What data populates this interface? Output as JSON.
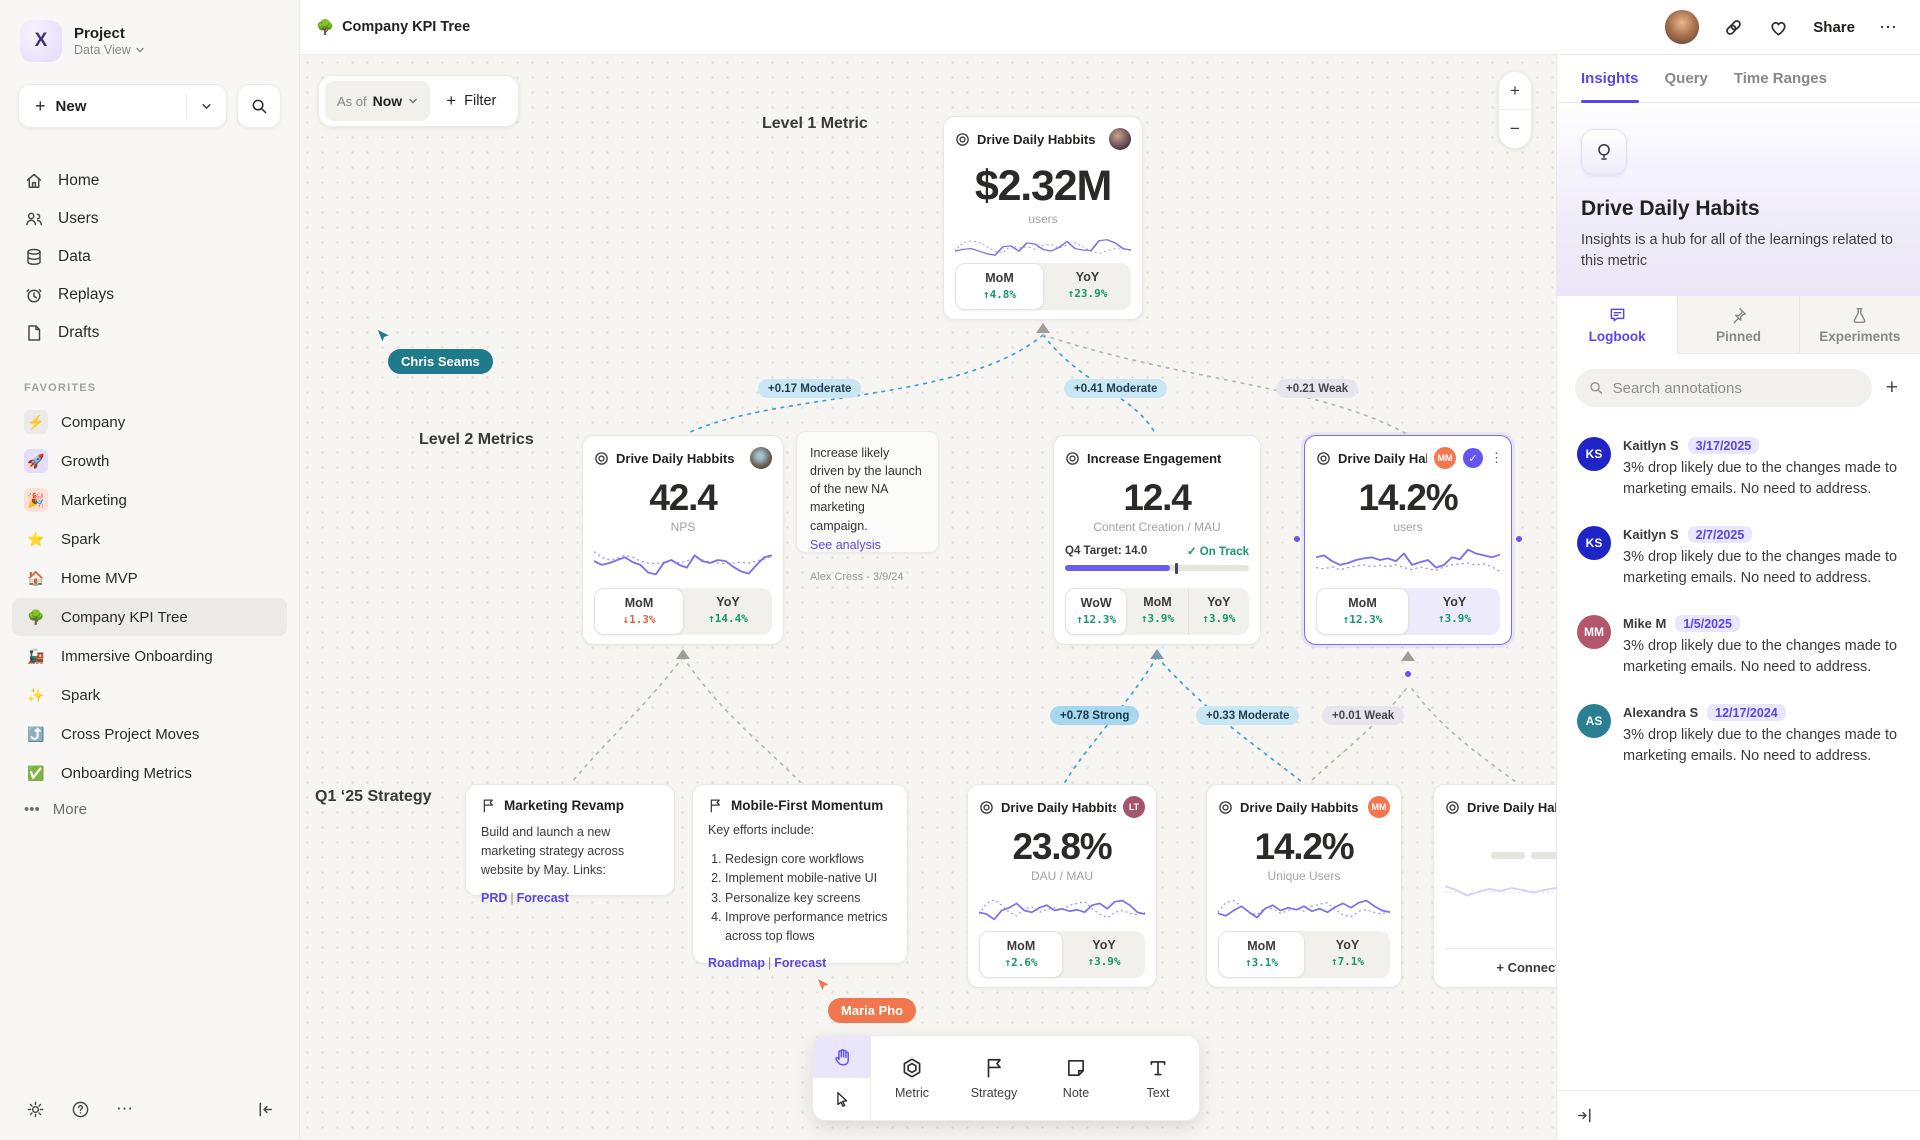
{
  "colors": {
    "accent": "#5a46e8",
    "spark": "#7b6ff0",
    "green": "#17976b",
    "red": "#e2604b",
    "edge_blue": "#3ba1d9",
    "edge_gray": "#b9b6b0",
    "pill_moderate_bg": "#c9e6f3",
    "pill_strong_bg": "#a6d7ee",
    "pill_weak_bg": "#e6e4ec",
    "selected_border": "#7b6cf6"
  },
  "sidebar": {
    "project_name": "Project",
    "project_view": "Data View",
    "new_label": "New",
    "nav": [
      {
        "icon": "home-icon",
        "label": "Home"
      },
      {
        "icon": "users-icon",
        "label": "Users"
      },
      {
        "icon": "data-icon",
        "label": "Data"
      },
      {
        "icon": "replays-icon",
        "label": "Replays"
      },
      {
        "icon": "drafts-icon",
        "label": "Drafts"
      }
    ],
    "favorites_label": "FAVORITES",
    "favorites": [
      {
        "emoji": "⚡",
        "label": "Company",
        "bg": "#ebeae7"
      },
      {
        "emoji": "🚀",
        "label": "Growth",
        "bg": "#e3ddfb"
      },
      {
        "emoji": "🎉",
        "label": "Marketing",
        "bg": "#fcdfd7"
      },
      {
        "emoji": "⭐",
        "label": "Spark",
        "bg": ""
      },
      {
        "emoji": "🏠",
        "label": "Home MVP",
        "bg": ""
      },
      {
        "emoji": "🌳",
        "label": "Company KPI Tree",
        "bg": ""
      },
      {
        "emoji": "🚂",
        "label": "Immersive Onboarding",
        "bg": ""
      },
      {
        "emoji": "✨",
        "label": "Spark",
        "bg": ""
      },
      {
        "emoji": "⤴️",
        "label": "Cross Project Moves",
        "bg": ""
      },
      {
        "emoji": "✅",
        "label": "Onboarding Metrics",
        "bg": ""
      }
    ],
    "more_label": "More"
  },
  "topbar": {
    "emoji": "🌳",
    "title": "Company KPI Tree",
    "share_label": "Share",
    "more_label": "⋯"
  },
  "canvas": {
    "asof_label": "As of",
    "asof_value": "Now",
    "filter_label": "Filter",
    "zoom_in": "+",
    "zoom_out": "−",
    "level1_label": "Level 1 Metric",
    "level2_label": "Level 2 Metrics",
    "strategy_label": "Q1 ‘25 Strategy",
    "cursors": [
      {
        "name": "Chris Seams",
        "color": "#1f7a8c"
      },
      {
        "name": "Maria Pho",
        "color": "#f0764e"
      }
    ],
    "edges": [
      {
        "label": "+0.17 Moderate"
      },
      {
        "label": "+0.41 Moderate"
      },
      {
        "label": "+0.21 Weak"
      },
      {
        "label": "+0.78 Strong"
      },
      {
        "label": "+0.33 Moderate"
      },
      {
        "label": "+0.01 Weak"
      }
    ]
  },
  "cards": {
    "level1": {
      "title": "Drive Daily Habbits",
      "value": "$2.32M",
      "unit": "users",
      "stats": [
        {
          "label": "MoM",
          "arrow": "↑",
          "value": "4.8%",
          "color": "#17976b"
        },
        {
          "label": "YoY",
          "arrow": "↑",
          "value": "23.9%",
          "color": "#17976b"
        }
      ],
      "spark": {
        "solid": [
          0.62,
          0.55,
          0.52,
          0.62,
          0.72,
          0.78,
          0.45,
          0.42,
          0.62,
          0.3,
          0.35,
          0.55,
          0.62,
          0.48,
          0.25,
          0.52,
          0.58,
          0.6,
          0.22,
          0.18,
          0.3,
          0.52,
          0.58
        ],
        "dotted": [
          0.6,
          0.3,
          0.22,
          0.28,
          0.45,
          0.62,
          0.68,
          0.4,
          0.5,
          0.45,
          0.55,
          0.4,
          0.35,
          0.5,
          0.38,
          0.3,
          0.45,
          0.62,
          0.72,
          0.6,
          0.52,
          0.55,
          0.6
        ]
      }
    },
    "l2a": {
      "title": "Drive Daily Habbits",
      "value": "42.4",
      "unit": "NPS",
      "stats": [
        {
          "label": "MoM",
          "arrow": "↓",
          "value": "1.3%",
          "color": "#e2604b"
        },
        {
          "label": "YoY",
          "arrow": "↑",
          "value": "14.4%",
          "color": "#17976b"
        }
      ],
      "spark": {
        "solid": [
          0.45,
          0.55,
          0.5,
          0.42,
          0.35,
          0.48,
          0.55,
          0.75,
          0.8,
          0.5,
          0.42,
          0.55,
          0.62,
          0.3,
          0.45,
          0.5,
          0.42,
          0.45,
          0.6,
          0.72,
          0.78,
          0.55,
          0.35,
          0.3
        ],
        "dotted": [
          0.2,
          0.35,
          0.42,
          0.38,
          0.3,
          0.35,
          0.45,
          0.5,
          0.52,
          0.48,
          0.42,
          0.5,
          0.45,
          0.35,
          0.42,
          0.48,
          0.5,
          0.52,
          0.5,
          0.48,
          0.5,
          0.45,
          0.4,
          0.32
        ]
      }
    },
    "note1": {
      "text": "Increase likely driven by the launch of the new NA marketing campaign.",
      "link": "See analysis",
      "author": "Alex Cress - 3/9/24"
    },
    "l2b": {
      "title": "Increase Engagement",
      "value": "12.4",
      "unit": "Content Creation / MAU",
      "target_label": "Q4 Target:",
      "target_value": "14.0",
      "status": "✓ On Track",
      "progress": 0.57,
      "tick": 0.6,
      "stats": [
        {
          "label": "WoW",
          "arrow": "↑",
          "value": "12.3%",
          "color": "#17976b"
        },
        {
          "label": "MoM",
          "arrow": "↑",
          "value": "3.9%",
          "color": "#17976b"
        },
        {
          "label": "YoY",
          "arrow": "↑",
          "value": "3.9%",
          "color": "#17976b"
        }
      ]
    },
    "l2c": {
      "title": "Drive Daily Habb..",
      "badge": "MM",
      "badge_color": "#f4764f",
      "check": "✓",
      "menu": "⋮",
      "value": "14.2%",
      "unit": "users",
      "stats": [
        {
          "label": "MoM",
          "arrow": "↑",
          "value": "12.3%",
          "color": "#17976b"
        },
        {
          "label": "YoY",
          "arrow": "↑",
          "value": "3.9%",
          "color": "#17976b"
        }
      ],
      "spark": {
        "solid": [
          0.35,
          0.3,
          0.45,
          0.55,
          0.5,
          0.42,
          0.38,
          0.35,
          0.42,
          0.38,
          0.45,
          0.25,
          0.55,
          0.48,
          0.42,
          0.62,
          0.55,
          0.35,
          0.4,
          0.15,
          0.25,
          0.3,
          0.35,
          0.28
        ],
        "dotted": [
          0.62,
          0.65,
          0.6,
          0.68,
          0.62,
          0.58,
          0.55,
          0.6,
          0.56,
          0.6,
          0.55,
          0.62,
          0.68,
          0.6,
          0.65,
          0.7,
          0.6,
          0.55,
          0.52,
          0.5,
          0.55,
          0.52,
          0.6,
          0.72
        ]
      }
    },
    "s1": {
      "title": "Marketing Revamp",
      "body": "Build and launch a new marketing strategy across website by May. Links:",
      "link1": "PRD",
      "link2": "Forecast"
    },
    "s2": {
      "title": "Mobile-First Momentum",
      "intro": "Key efforts include:",
      "items": [
        "Redesign core workflows",
        "Implement mobile-native UI",
        "Personalize key screens",
        "Improve performance metrics across top flows"
      ],
      "link1": "Roadmap",
      "link2": "Forecast"
    },
    "m1": {
      "title": "Drive Daily Habbits",
      "badge": "LT",
      "badge_color": "#a5556a",
      "value": "23.8%",
      "unit": "DAU / MAU",
      "stats": [
        {
          "label": "MoM",
          "arrow": "↑",
          "value": "2.6%",
          "color": "#17976b"
        },
        {
          "label": "YoY",
          "arrow": "↑",
          "value": "3.9%",
          "color": "#17976b"
        }
      ],
      "spark": {
        "solid": [
          0.55,
          0.6,
          0.75,
          0.5,
          0.42,
          0.3,
          0.5,
          0.55,
          0.42,
          0.35,
          0.5,
          0.45,
          0.52,
          0.48,
          0.55,
          0.35,
          0.3,
          0.45,
          0.25,
          0.22,
          0.35,
          0.55,
          0.6
        ],
        "dotted": [
          0.6,
          0.3,
          0.2,
          0.35,
          0.55,
          0.65,
          0.45,
          0.4,
          0.55,
          0.48,
          0.42,
          0.5,
          0.35,
          0.3,
          0.25,
          0.45,
          0.6,
          0.7,
          0.55,
          0.5,
          0.58,
          0.62,
          0.55
        ]
      }
    },
    "m2": {
      "title": "Drive Daily Habbits",
      "badge": "MM",
      "badge_color": "#f4764f",
      "value": "14.2%",
      "unit": "Unique Users",
      "stats": [
        {
          "label": "MoM",
          "arrow": "↑",
          "value": "3.1%",
          "color": "#17976b"
        },
        {
          "label": "YoY",
          "arrow": "↑",
          "value": "7.1%",
          "color": "#17976b"
        }
      ],
      "spark": {
        "solid": [
          0.58,
          0.65,
          0.5,
          0.38,
          0.55,
          0.7,
          0.45,
          0.35,
          0.5,
          0.42,
          0.48,
          0.38,
          0.52,
          0.45,
          0.55,
          0.4,
          0.3,
          0.42,
          0.28,
          0.22,
          0.38,
          0.5,
          0.55
        ],
        "dotted": [
          0.55,
          0.28,
          0.22,
          0.38,
          0.55,
          0.62,
          0.42,
          0.45,
          0.58,
          0.5,
          0.44,
          0.52,
          0.38,
          0.32,
          0.28,
          0.48,
          0.62,
          0.68,
          0.52,
          0.48,
          0.55,
          0.6,
          0.52
        ]
      }
    },
    "m3": {
      "title": "Drive Daily Hab",
      "connect_label": "+ Connect",
      "spark": {
        "solid": [
          0.45,
          0.55,
          0.7,
          0.6,
          0.52,
          0.58,
          0.5,
          0.55,
          0.62,
          0.55,
          0.5,
          0.58,
          0.62,
          0.55,
          0.6,
          0.52
        ],
        "dotted": [
          0.62,
          0.6,
          0.65,
          0.62,
          0.58,
          0.6,
          0.62,
          0.6,
          0.58,
          0.62,
          0.6,
          0.62,
          0.58,
          0.6,
          0.62,
          0.6
        ]
      }
    }
  },
  "toolbar": {
    "tools": [
      {
        "label": "Metric"
      },
      {
        "label": "Strategy"
      },
      {
        "label": "Note"
      },
      {
        "label": "Text"
      }
    ]
  },
  "panel": {
    "tabs": [
      "Insights",
      "Query",
      "Time Ranges"
    ],
    "hero": {
      "title": "Drive Daily Habits",
      "desc": "Insights is a hub for all of the learnings related to this metric"
    },
    "subtabs": [
      "Logbook",
      "Pinned",
      "Experiments"
    ],
    "search_placeholder": "Search annotations",
    "add_label": "+",
    "annotations": [
      {
        "initials": "KS",
        "color": "#1f24c4",
        "name": "Kaitlyn S",
        "date": "3/17/2025",
        "text": "3% drop likely due to the changes made to marketing emails. No need to address."
      },
      {
        "initials": "KS",
        "color": "#1f24c4",
        "name": "Kaitlyn S",
        "date": "2/7/2025",
        "text": "3% drop likely due to the changes made to marketing emails. No need to address."
      },
      {
        "initials": "MM",
        "color": "#b4566c",
        "name": "Mike M",
        "date": "1/5/2025",
        "text": "3% drop likely due to the changes made to marketing emails. No need to address."
      },
      {
        "initials": "AS",
        "color": "#2a7f93",
        "name": "Alexandra S",
        "date": "12/17/2024",
        "text": "3% drop likely due to the changes made to marketing emails. No need to address."
      }
    ]
  }
}
